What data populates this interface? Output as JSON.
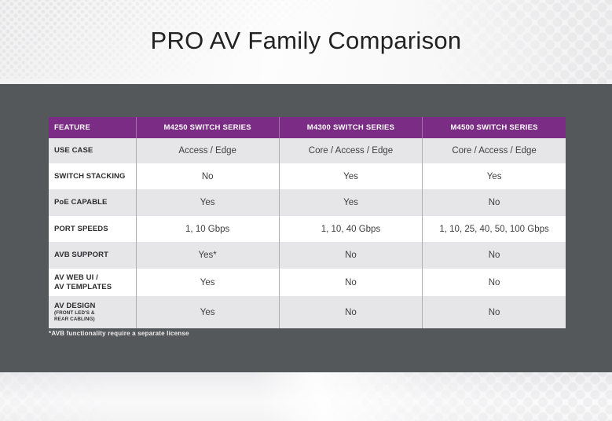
{
  "header": {
    "title": "PRO AV Family Comparison"
  },
  "table": {
    "columns": [
      "FEATURE",
      "M4250 SWITCH SERIES",
      "M4300 SWITCH SERIES",
      "M4500 SWITCH SERIES"
    ],
    "rows": [
      {
        "feature": "USE CASE",
        "sub": "",
        "values": [
          "Access / Edge",
          "Core / Access / Edge",
          "Core / Access / Edge"
        ]
      },
      {
        "feature": "SWITCH STACKING",
        "sub": "",
        "values": [
          "No",
          "Yes",
          "Yes"
        ]
      },
      {
        "feature": "PoE CAPABLE",
        "sub": "",
        "values": [
          "Yes",
          "Yes",
          "No"
        ]
      },
      {
        "feature": "PORT SPEEDS",
        "sub": "",
        "values": [
          "1, 10 Gbps",
          "1, 10, 40 Gbps",
          "1, 10, 25, 40, 50, 100 Gbps"
        ]
      },
      {
        "feature": "AVB SUPPORT",
        "sub": "",
        "values": [
          "Yes*",
          "No",
          "No"
        ]
      },
      {
        "feature": "AV WEB UI /\nAV TEMPLATES",
        "sub": "",
        "values": [
          "Yes",
          "No",
          "No"
        ]
      },
      {
        "feature": "AV DESIGN",
        "sub": "(FRONT LED'S &\nREAR CABLING)",
        "values": [
          "Yes",
          "No",
          "No"
        ]
      }
    ],
    "footnote": "*AVB functionality require a separate license"
  },
  "colors": {
    "header_purple": "#7B2C84",
    "row_gray": "#E6E5E8",
    "row_white": "#FFFFFF",
    "band_dark": "#55585A",
    "title_text": "#222222",
    "cell_text": "#3F3F41",
    "label_text": "#2D2D2F",
    "footnote_text": "#EFEFEF"
  }
}
